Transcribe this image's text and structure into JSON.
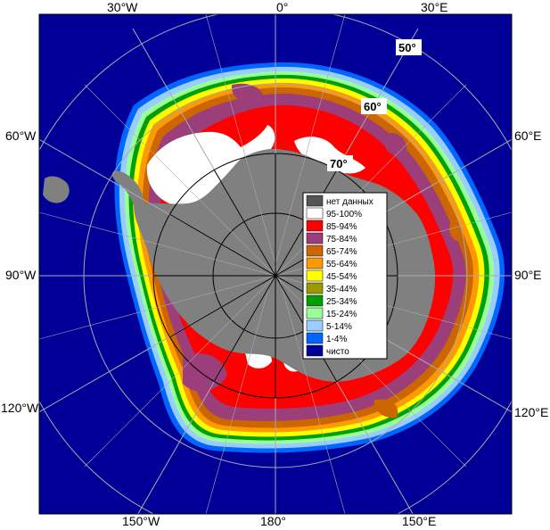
{
  "map": {
    "longitude_labels": {
      "w30": "30°W",
      "zero": "0°",
      "e30": "30°E",
      "w60": "60°W",
      "e60": "60°E",
      "w90": "90°W",
      "e90": "90°E",
      "w120": "120°W",
      "e120": "120°E",
      "w150": "150°W",
      "c180": "180°",
      "e150": "150°E"
    },
    "latitude_labels": {
      "lat50": "50°",
      "lat60": "60°",
      "lat70": "70°"
    }
  },
  "legend": {
    "items": [
      {
        "label": "нет данных",
        "color": "#555555"
      },
      {
        "label": "95-100%",
        "color": "#ffffff"
      },
      {
        "label": "85-94%",
        "color": "#ff0000"
      },
      {
        "label": "75-84%",
        "color": "#9c3e7a"
      },
      {
        "label": "65-74%",
        "color": "#cc6600"
      },
      {
        "label": "55-64%",
        "color": "#ff9900"
      },
      {
        "label": "45-54%",
        "color": "#ffff00"
      },
      {
        "label": "35-44%",
        "color": "#999900"
      },
      {
        "label": "25-34%",
        "color": "#00a000"
      },
      {
        "label": "15-24%",
        "color": "#99ff99"
      },
      {
        "label": "5-14%",
        "color": "#99ccff"
      },
      {
        "label": "1-4%",
        "color": "#0066ff"
      },
      {
        "label": "чисто",
        "color": "#000099"
      }
    ]
  },
  "colors": {
    "ocean": "#000099",
    "land": "#808080",
    "no_data": "#555555",
    "grid": "#aaaaaa"
  }
}
